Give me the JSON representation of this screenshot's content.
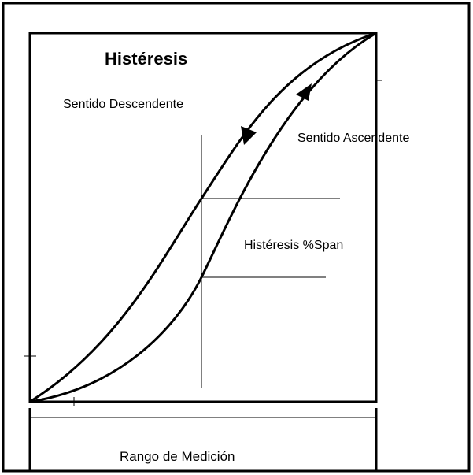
{
  "title": "Histéresis",
  "labels": {
    "descending": "Sentido Descendente",
    "ascending": "Sentido Ascendente",
    "hysteresis": "Histéresis %Span"
  },
  "range_label": "Rango de Medición"
}
